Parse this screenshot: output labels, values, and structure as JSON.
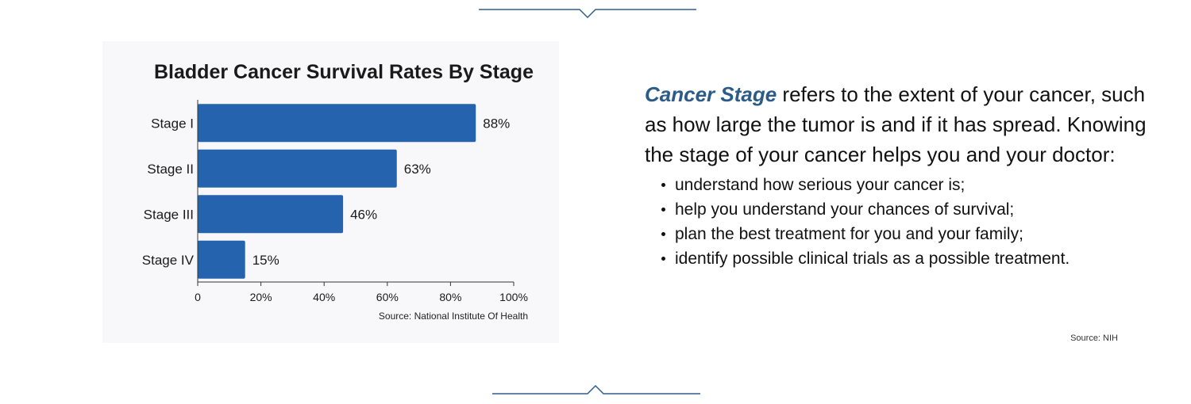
{
  "chart_data": {
    "type": "bar",
    "orientation": "horizontal",
    "title": "Bladder Cancer Survival Rates By Stage",
    "categories": [
      "Stage I",
      "Stage II",
      "Stage III",
      "Stage IV"
    ],
    "values": [
      88,
      63,
      46,
      15
    ],
    "data_labels": [
      "88%",
      "63%",
      "46%",
      "15%"
    ],
    "x_ticks": [
      "0",
      "20%",
      "40%",
      "60%",
      "80%",
      "100%"
    ],
    "xlim": [
      0,
      100
    ],
    "bar_color": "#2563ae",
    "grid": false,
    "source": "Source: National Institute Of Health"
  },
  "explanation": {
    "term": "Cancer Stage",
    "intro": " refers to the extent of your cancer, such as how large the tumor is and if it has spread. Knowing the stage of your cancer helps you and your doctor:",
    "bullets": [
      "understand how serious your cancer is;",
      "help you understand your chances of survival;",
      "plan the best treatment for you and your family;",
      "identify possible clinical trials as a possible treatment."
    ],
    "source": "Source: NIH"
  },
  "colors": {
    "accent": "#2b5b87",
    "divider": "#2f5e8e",
    "card_background": "#f8f8fa"
  }
}
